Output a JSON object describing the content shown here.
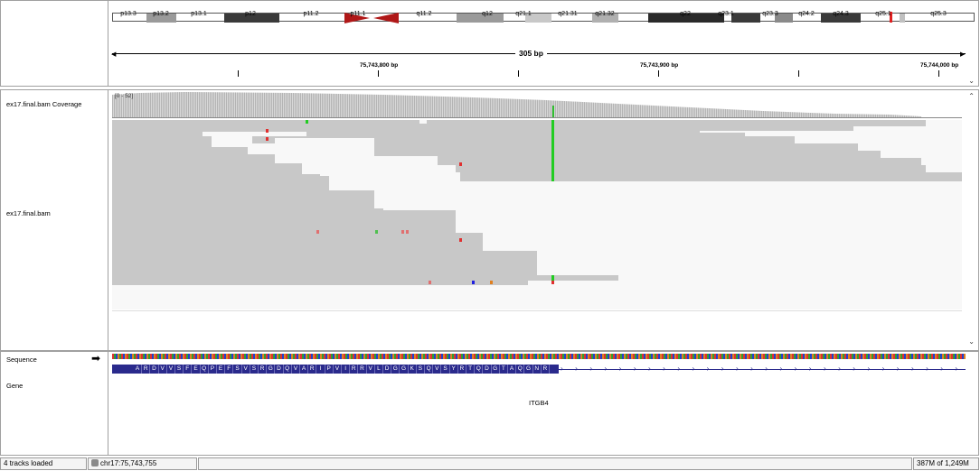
{
  "ideogram": {
    "bands": [
      "p13.3",
      "p13.2",
      "p13.1",
      "p12",
      "p11.2",
      "p11.1",
      "q11.2",
      "q12",
      "q21.1",
      "q21.31",
      "q21.32",
      "q22",
      "q23.1",
      "q23.3",
      "q24.2",
      "q24.3",
      "q25.1",
      "q25.3"
    ]
  },
  "ruler": {
    "span_label": "305 bp",
    "tick_labels": [
      "75,743,800 bp",
      "75,743,900 bp",
      "75,744,000 bp"
    ]
  },
  "tracks": {
    "coverage_name": "ex17.final.bam Coverage",
    "coverage_range": "[0 - 52]",
    "alignment_name": "ex17.final.bam",
    "sequence_name": "Sequence",
    "gene_name": "Gene",
    "gene_label": "ITGB4",
    "amino_acids": [
      "A",
      "R",
      "D",
      "V",
      "V",
      "S",
      "F",
      "E",
      "Q",
      "P",
      "E",
      "F",
      "S",
      "V",
      "S",
      "R",
      "G",
      "D",
      "Q",
      "V",
      "A",
      "R",
      "I",
      "P",
      "V",
      "I",
      "R",
      "R",
      "V",
      "L",
      "D",
      "G",
      "G",
      "K",
      "S",
      "Q",
      "V",
      "S",
      "Y",
      "R",
      "T",
      "Q",
      "D",
      "G",
      "T",
      "A",
      "Q",
      "G",
      "N",
      "R"
    ]
  },
  "status": {
    "tracks_loaded": "4 tracks loaded",
    "locus": "chr17:75,743,755",
    "memory": "387M of 1,249M"
  },
  "colors": {
    "read": "#c8c8c8",
    "mismatch_a": "#22cc22",
    "mismatch_t": "#e03030",
    "mismatch_c": "#2020e0",
    "mismatch_g": "#e08020",
    "centromere": "#b01818",
    "locus_marker": "#e02020",
    "amino_acid": "#2a2a8c"
  }
}
